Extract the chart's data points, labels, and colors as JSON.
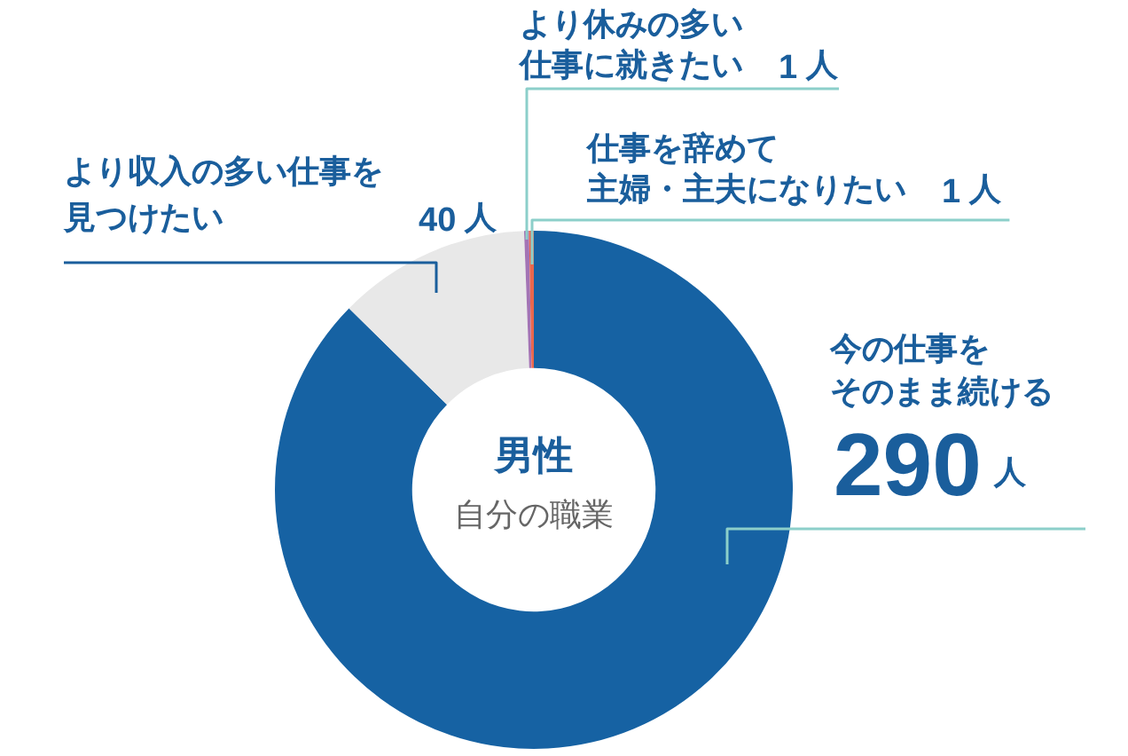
{
  "chart_data": {
    "type": "donut",
    "title": "男性",
    "subtitle": "自分の職業",
    "categories": [
      "今の仕事をそのまま続ける",
      "より収入の多い仕事を見つけたい",
      "より休みの多い仕事に就きたい",
      "仕事を辞めて主婦・主夫になりたい"
    ],
    "values": [
      290,
      40,
      1,
      1
    ],
    "colors": [
      "#1662a3",
      "#e8e8e8",
      "#a374b5",
      "#e9674d"
    ],
    "value_labels": [
      "290人",
      "40人",
      "1人",
      "1人"
    ]
  }
}
